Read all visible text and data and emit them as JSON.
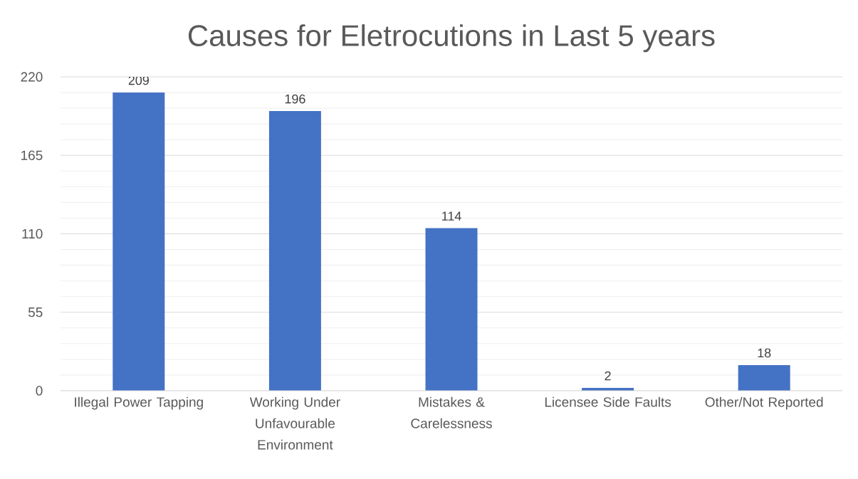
{
  "chart_data": {
    "type": "bar",
    "title": "Causes for Eletrocutions in Last 5 years",
    "categories": [
      "Illegal Power Tapping",
      "Working Under Unfavourable Environment",
      "Mistakes & Carelessness",
      "Licensee Side Faults",
      "Other/Not Reported"
    ],
    "values": [
      209,
      196,
      114,
      2,
      18
    ],
    "color": "#4472c4",
    "ylim": [
      0,
      220
    ],
    "yticks": [
      0,
      {
        "value": 11,
        "label": null
      },
      {
        "value": 22,
        "label": null
      },
      {
        "value": 33,
        "label": null
      },
      {
        "value": 44,
        "label": null
      },
      55,
      {
        "value": 66,
        "label": null
      },
      {
        "value": 77,
        "label": null
      },
      {
        "value": 88,
        "label": null
      },
      {
        "value": 99,
        "label": null
      },
      110,
      {
        "value": 121,
        "label": null
      },
      {
        "value": 132,
        "label": null
      },
      {
        "value": 143,
        "label": null
      },
      {
        "value": 154,
        "label": null
      },
      165,
      {
        "value": 176,
        "label": null
      },
      {
        "value": 187,
        "label": null
      },
      {
        "value": 198,
        "label": null
      },
      {
        "value": 209,
        "label": null
      },
      220
    ],
    "grid": true,
    "data_labels": true
  }
}
